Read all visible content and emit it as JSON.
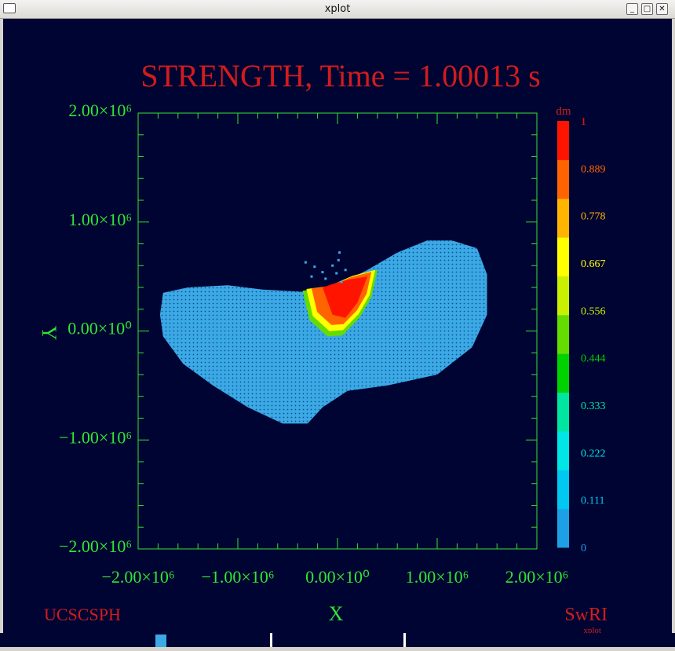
{
  "window": {
    "title": "xplot",
    "minimize_glyph": "_",
    "maximize_glyph": "□",
    "close_glyph": "✕"
  },
  "plot": {
    "title": "STRENGTH, Time = 1.00013 s",
    "footer_left": "UCSCSPH",
    "footer_right": "SwRI",
    "footer_right_small": "xplot",
    "colors": {
      "background": "#000433",
      "axes": "#32e632",
      "title": "#d21c1c",
      "body": "#3ba9e6"
    }
  },
  "chart_data": {
    "type": "scatter",
    "title": "STRENGTH, Time = 1.00013 s",
    "xlabel": "X",
    "ylabel": "Y",
    "xlim": [
      -2000000,
      2000000
    ],
    "ylim": [
      -2000000,
      2000000
    ],
    "x_ticks": [
      "−2.00×10⁶",
      "−1.00×10⁶",
      "0.00×10⁰",
      "1.00×10⁶",
      "2.00×10⁶"
    ],
    "y_ticks": [
      "2.00×10⁶",
      "1.00×10⁶",
      "0.00×10⁰",
      "−1.00×10⁶",
      "−2.00×10⁶"
    ],
    "colorbar": {
      "label": "dm",
      "ticks": [
        "1",
        "0.889",
        "0.778",
        "0.667",
        "0.556",
        "0.444",
        "0.333",
        "0.222",
        "0.111",
        "0"
      ],
      "colors": [
        "#1ea0e6",
        "#00c8f0",
        "#00e6e6",
        "#00e6a0",
        "#00d200",
        "#64dc00",
        "#c8f000",
        "#ffff00",
        "#ffb400",
        "#ff6400",
        "#ff1400"
      ]
    },
    "body_outline": [
      [
        -1750000,
        350000
      ],
      [
        -1500000,
        400000
      ],
      [
        -1100000,
        420000
      ],
      [
        -750000,
        380000
      ],
      [
        -350000,
        360000
      ],
      [
        0,
        420000
      ],
      [
        300000,
        560000
      ],
      [
        600000,
        720000
      ],
      [
        900000,
        830000
      ],
      [
        1150000,
        830000
      ],
      [
        1400000,
        760000
      ],
      [
        1500000,
        520000
      ],
      [
        1500000,
        150000
      ],
      [
        1350000,
        -150000
      ],
      [
        1000000,
        -400000
      ],
      [
        500000,
        -500000
      ],
      [
        100000,
        -550000
      ],
      [
        -150000,
        -700000
      ],
      [
        -300000,
        -850000
      ],
      [
        -550000,
        -850000
      ],
      [
        -900000,
        -700000
      ],
      [
        -1250000,
        -500000
      ],
      [
        -1550000,
        -300000
      ],
      [
        -1750000,
        -50000
      ],
      [
        -1780000,
        150000
      ]
    ],
    "crater_outline": [
      [
        -350000,
        370000
      ],
      [
        -280000,
        100000
      ],
      [
        -100000,
        -50000
      ],
      [
        50000,
        -40000
      ],
      [
        220000,
        120000
      ],
      [
        340000,
        310000
      ],
      [
        400000,
        560000
      ],
      [
        150000,
        500000
      ],
      [
        -100000,
        400000
      ]
    ],
    "crater_core": [
      [
        -150000,
        400000
      ],
      [
        -50000,
        150000
      ],
      [
        80000,
        120000
      ],
      [
        200000,
        260000
      ],
      [
        300000,
        500000
      ],
      [
        100000,
        470000
      ],
      [
        -50000,
        430000
      ]
    ],
    "ejecta": [
      [
        -230000,
        590000
      ],
      [
        -150000,
        540000
      ],
      [
        -120000,
        480000
      ],
      [
        -50000,
        600000
      ],
      [
        10000,
        650000
      ],
      [
        20000,
        720000
      ],
      [
        40000,
        450000
      ],
      [
        -320000,
        630000
      ],
      [
        -260000,
        500000
      ],
      [
        -10000,
        530000
      ],
      [
        80000,
        560000
      ]
    ]
  }
}
